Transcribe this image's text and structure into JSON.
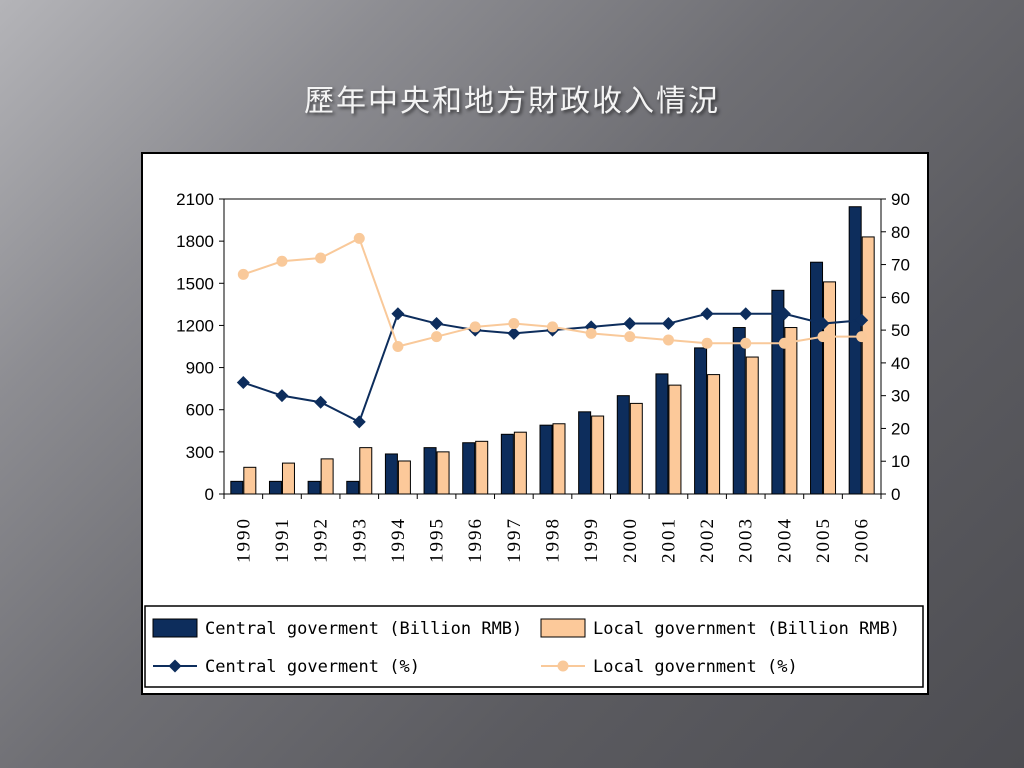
{
  "slide": {
    "title": "歷年中央和地方財政收入情況"
  },
  "colors": {
    "central": "#0d2d5c",
    "local": "#fcc99a",
    "local_line": "#f9c99a",
    "text": "#000000"
  },
  "chart_data": {
    "type": "bar",
    "title": "",
    "categories": [
      "1990",
      "1991",
      "1992",
      "1993",
      "1994",
      "1995",
      "1996",
      "1997",
      "1998",
      "1999",
      "2000",
      "2001",
      "2002",
      "2003",
      "2004",
      "2005",
      "2006"
    ],
    "y_left": {
      "min": 0,
      "max": 2100,
      "ticks": [
        0,
        300,
        600,
        900,
        1200,
        1500,
        1800,
        2100
      ]
    },
    "y_right": {
      "min": 0,
      "max": 90,
      "ticks": [
        0,
        10,
        20,
        30,
        40,
        50,
        60,
        70,
        80,
        90
      ]
    },
    "grid": false,
    "legend_position": "bottom",
    "series": [
      {
        "name": "Central goverment (Billion RMB)",
        "kind": "bar",
        "axis": "left",
        "color": "#0d2d5c",
        "values": [
          90,
          90,
          90,
          90,
          285,
          330,
          365,
          425,
          490,
          585,
          700,
          855,
          1040,
          1185,
          1450,
          1650,
          2045
        ]
      },
      {
        "name": "Local government (Billion RMB)",
        "kind": "bar",
        "axis": "left",
        "color": "#fcc99a",
        "values": [
          190,
          220,
          250,
          330,
          235,
          300,
          375,
          440,
          500,
          555,
          645,
          775,
          850,
          975,
          1185,
          1510,
          1830
        ]
      },
      {
        "name": "Central goverment (%)",
        "kind": "line",
        "axis": "right",
        "marker": "diamond",
        "color": "#0d2d5c",
        "values": [
          34,
          30,
          28,
          22,
          55,
          52,
          50,
          49,
          50,
          51,
          52,
          52,
          55,
          55,
          55,
          52,
          53
        ]
      },
      {
        "name": "Local government (%)",
        "kind": "line",
        "axis": "right",
        "marker": "circle",
        "color": "#f9c99a",
        "values": [
          67,
          71,
          72,
          78,
          45,
          48,
          51,
          52,
          51,
          49,
          48,
          47,
          46,
          46,
          46,
          48,
          48
        ]
      }
    ]
  }
}
